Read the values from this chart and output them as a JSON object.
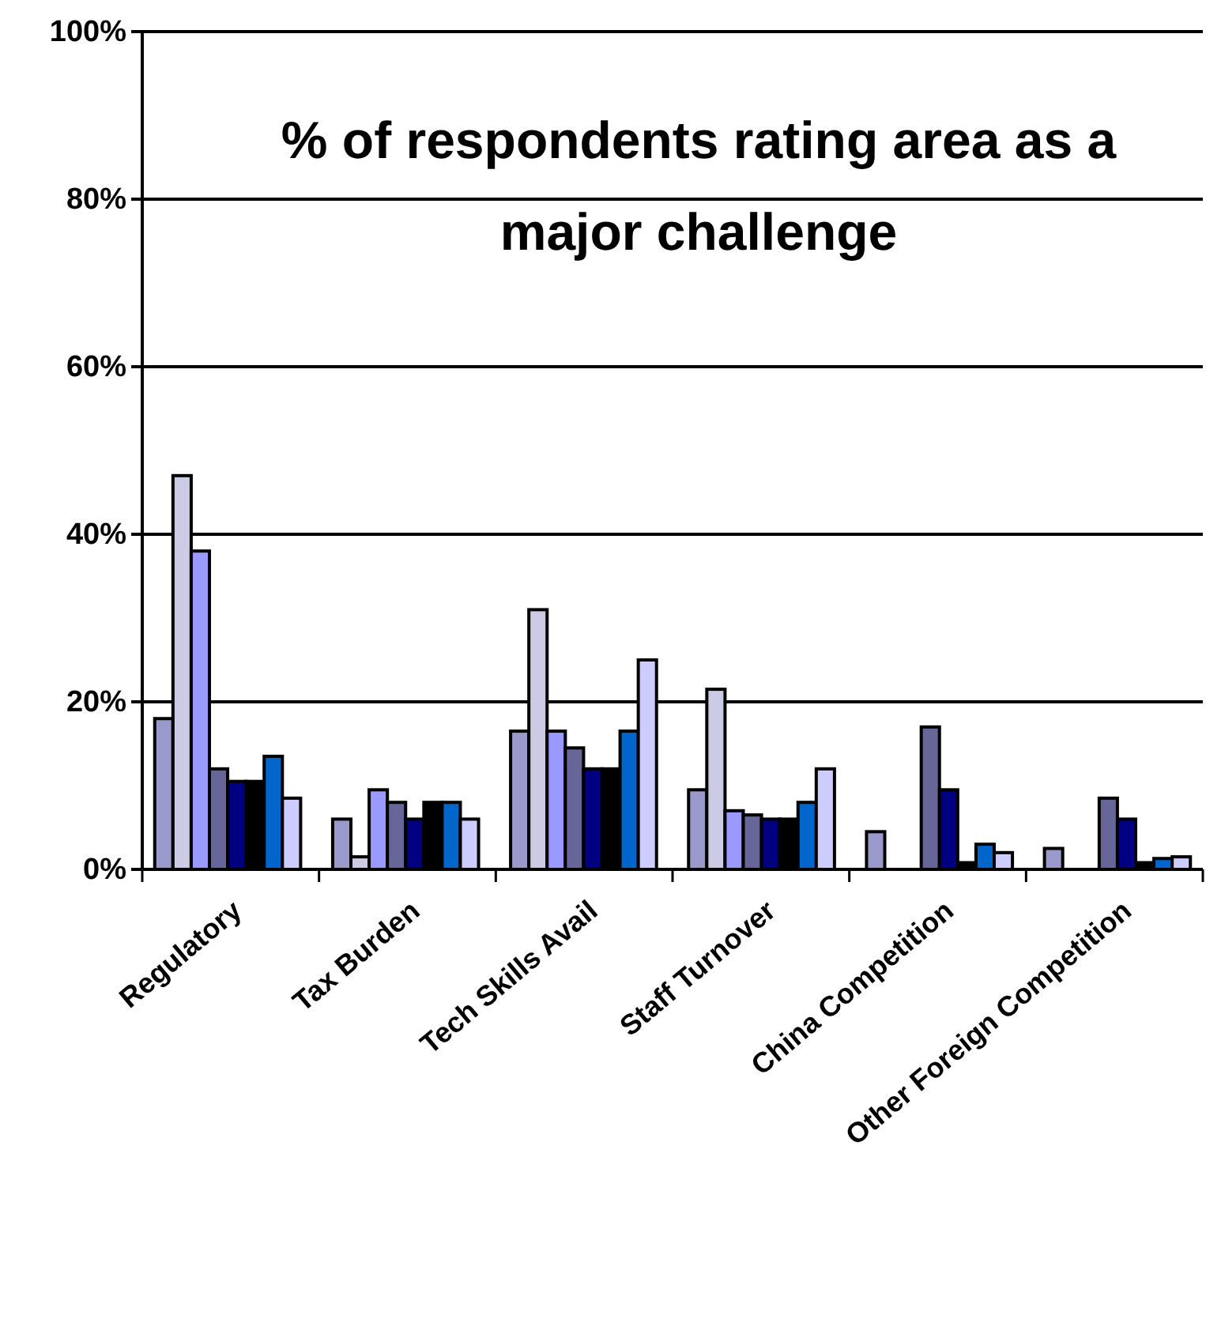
{
  "chart_data": {
    "type": "bar",
    "title": "% of respondents rating area as a major challenge",
    "categories": [
      "Regulatory",
      "Tax Burden",
      "Tech Skills Avail",
      "Staff Turnover",
      "China Competition",
      "Other Foreign Competition"
    ],
    "series": [
      {
        "color": "#9999cc",
        "values": [
          18,
          6,
          16.5,
          9.5,
          4.5,
          2.5
        ]
      },
      {
        "color": "#cbcbe6",
        "values": [
          47,
          1.5,
          31,
          21.5,
          0,
          0
        ]
      },
      {
        "color": "#9999ff",
        "values": [
          38,
          9.5,
          16.5,
          7,
          0,
          0
        ]
      },
      {
        "color": "#666699",
        "values": [
          12,
          8,
          14.5,
          6.5,
          17,
          8.5
        ]
      },
      {
        "color": "#000080",
        "values": [
          10.5,
          6,
          12,
          6,
          9.5,
          6
        ]
      },
      {
        "color": "#000000",
        "values": [
          10.5,
          8,
          12,
          6,
          0.8,
          0.8
        ]
      },
      {
        "color": "#0066cc",
        "values": [
          13.5,
          8,
          16.5,
          8,
          3,
          1.3
        ]
      },
      {
        "color": "#ccccff",
        "values": [
          8.5,
          6,
          25,
          12,
          2,
          1.5
        ]
      }
    ],
    "ylim": [
      0,
      100
    ],
    "yticks": [
      {
        "value": 0,
        "label": "0%"
      },
      {
        "value": 20,
        "label": "20%"
      },
      {
        "value": 40,
        "label": "40%"
      },
      {
        "value": 60,
        "label": "60%"
      },
      {
        "value": 80,
        "label": "80%"
      },
      {
        "value": 100,
        "label": "100%"
      }
    ],
    "grid": "y"
  }
}
